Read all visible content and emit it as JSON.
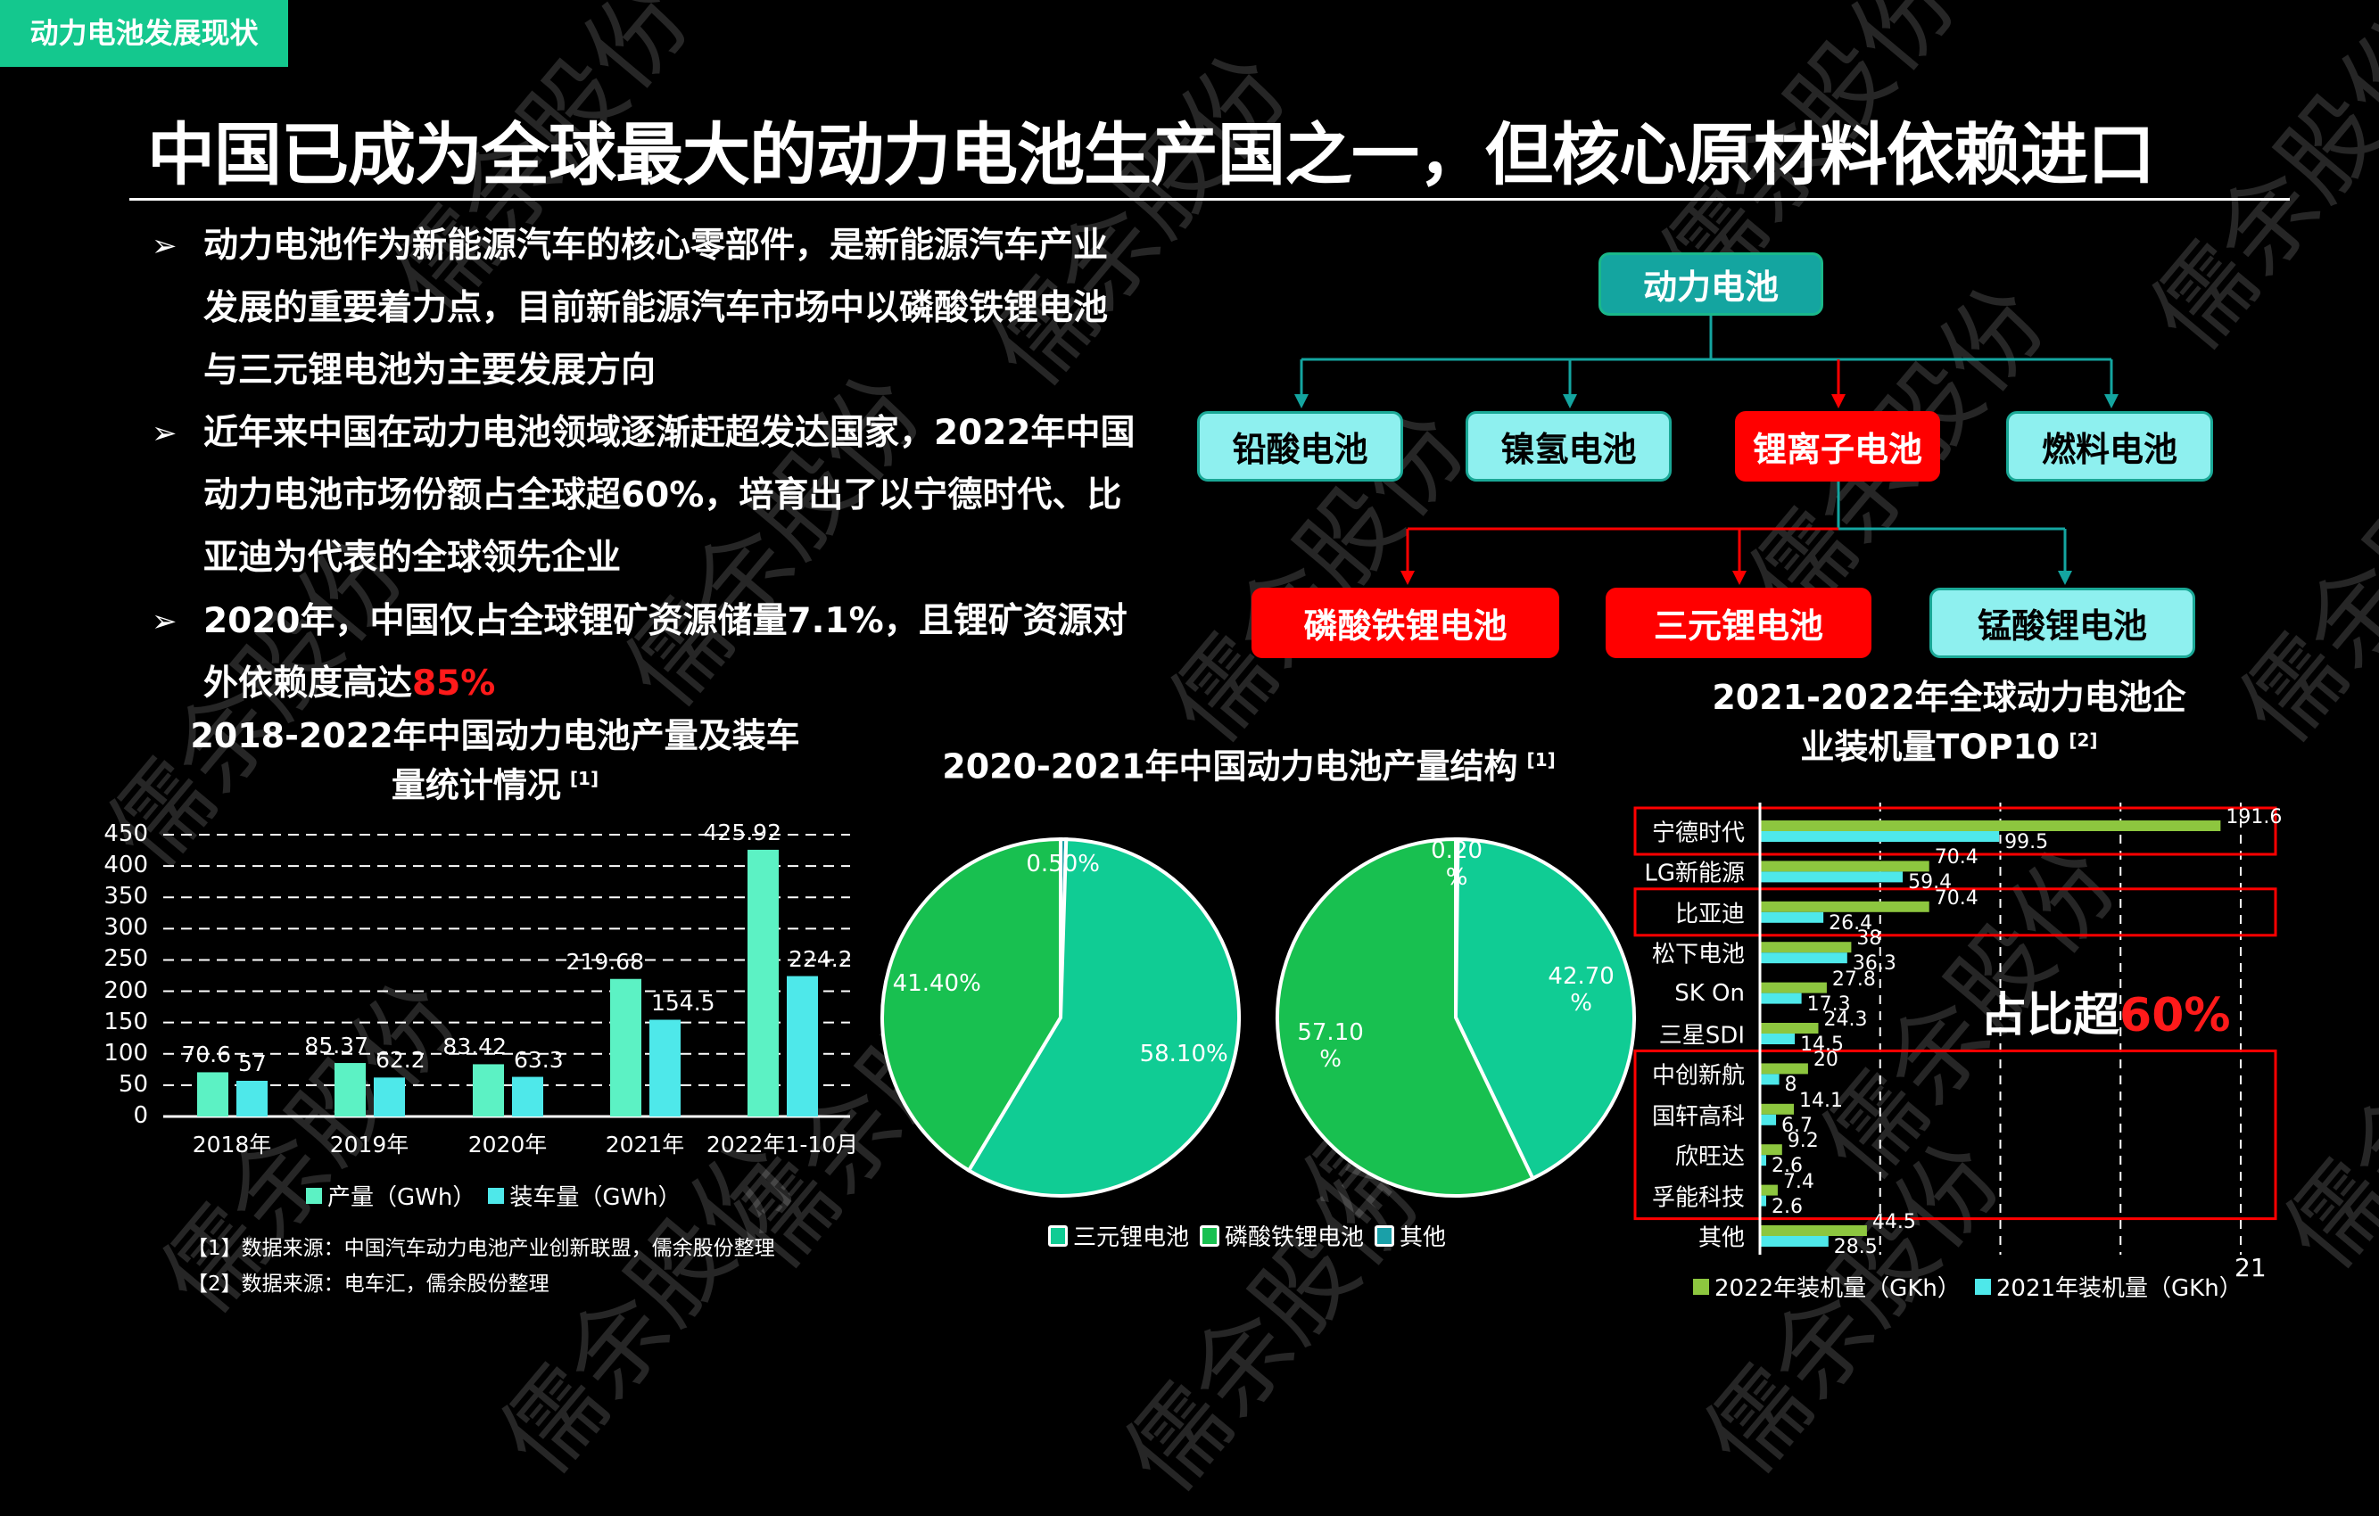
{
  "tag": "动力电池发展现状",
  "title": "中国已成为全球最大的动力电池生产国之一，但核心原材料依赖进口",
  "watermark": "儒余股份",
  "bullets": [
    {
      "lines": [
        "动力电池作为新能源汽车的核心零部件，是新能源汽车产业",
        "发展的重要着力点，目前新能源汽车市场中以磷酸铁锂电池",
        "与三元锂电池为主要发展方向"
      ],
      "highlight": ""
    },
    {
      "lines": [
        "近年来中国在动力电池领域逐渐赶超发达国家，2022年中国",
        "动力电池市场份额占全球超60%，培育出了以宁德时代、比",
        "亚迪为代表的全球领先企业"
      ],
      "highlight": ""
    },
    {
      "lines": [
        "2020年，中国仅占全球锂矿资源储量7.1%，且锂矿资源对",
        "外依赖度高达"
      ],
      "highlight": "85%"
    }
  ],
  "tree": {
    "root": "动力电池",
    "level2": [
      {
        "label": "铅酸电池",
        "highlighted": false
      },
      {
        "label": "镍氢电池",
        "highlighted": false
      },
      {
        "label": "锂离子电池",
        "highlighted": true
      },
      {
        "label": "燃料电池",
        "highlighted": false
      }
    ],
    "level3": [
      {
        "label": "磷酸铁锂电池",
        "highlighted": true
      },
      {
        "label": "三元锂电池",
        "highlighted": true
      },
      {
        "label": "锰酸锂电池",
        "highlighted": false
      }
    ],
    "colors": {
      "teal": "#14a5a0",
      "cyan": "#8ef0ef",
      "red": "#ff0000"
    }
  },
  "footnotes": [
    "【1】数据来源：中国汽车动力电池产业创新联盟，儒余股份整理",
    "【2】数据来源：电车汇，儒余股份整理"
  ],
  "page_number": "21",
  "chart_data": [
    {
      "type": "bar",
      "title_lines": [
        "2018-2022年中国动力电池产量及装车",
        "量统计情况"
      ],
      "title_ref": "[1]",
      "categories": [
        "2018年",
        "2019年",
        "2020年",
        "2021年",
        "2022年1-10月"
      ],
      "series": [
        {
          "name": "产量（GWh）",
          "values": [
            70.6,
            85.37,
            83.42,
            219.68,
            425.92
          ],
          "labels": [
            "70.6",
            "85.37",
            "83.42",
            "219.68",
            "425.92"
          ],
          "color": "#5cf2c4"
        },
        {
          "name": "装车量（GWh）",
          "values": [
            57,
            62.2,
            63.3,
            154.5,
            224.2
          ],
          "labels": [
            "57",
            "62.2",
            "63.3",
            "154.5",
            "224.2"
          ],
          "color": "#4ee8ea"
        }
      ],
      "ylim": [
        0,
        450
      ],
      "yticks": [
        "0",
        "50",
        "100",
        "150",
        "200",
        "250",
        "300",
        "350",
        "400",
        "450"
      ],
      "grid": true,
      "legend": "bottom"
    },
    {
      "type": "pie",
      "title": "2020-2021年中国动力电池产量结构",
      "title_ref": "[1]",
      "categories": [
        "三元锂电池",
        "磷酸铁锂电池",
        "其他"
      ],
      "colors": [
        "#10cc94",
        "#18c050",
        "#1aa0a8"
      ],
      "pies": [
        {
          "values": [
            58.1,
            41.4,
            0.5
          ],
          "labels": [
            "58.10%",
            "41.40%",
            "0.50%"
          ]
        },
        {
          "values": [
            42.7,
            57.1,
            0.2
          ],
          "labels": [
            "42.70%",
            "57.10%",
            "0.20%"
          ]
        }
      ],
      "legend": "bottom"
    },
    {
      "type": "bar",
      "orientation": "horizontal",
      "title_lines": [
        "2021-2022年全球动力电池企",
        "业装机量TOP10"
      ],
      "title_ref": "[2]",
      "categories": [
        "宁德时代",
        "LG新能源",
        "比亚迪",
        "松下电池",
        "SK On",
        "三星SDI",
        "中创新航",
        "国轩高科",
        "欣旺达",
        "孚能科技",
        "其他"
      ],
      "series": [
        {
          "name": "2022年装机量（GKh）",
          "values": [
            191.6,
            70.4,
            70.4,
            38,
            27.8,
            24.3,
            20,
            14.1,
            9.2,
            7.4,
            44.5
          ],
          "labels": [
            "191.6",
            "70.4",
            "70.4",
            "38",
            "27.8",
            "24.3",
            "20",
            "14.1",
            "9.2",
            "7.4",
            "44.5"
          ],
          "color": "#8dc63f"
        },
        {
          "name": "2021年装机量（GKh）",
          "values": [
            99.5,
            59.4,
            26.4,
            36.3,
            17.3,
            14.5,
            8,
            6.7,
            2.6,
            2.6,
            28.5
          ],
          "labels": [
            "99.5",
            "59.4",
            "26.4",
            "36.3",
            "17.3",
            "14.5",
            "8",
            "6.7",
            "2.6",
            "2.6",
            "28.5"
          ],
          "color": "#4ee8ea"
        }
      ],
      "xlim": [
        0,
        200
      ],
      "grid": true,
      "grid_step": 50,
      "legend": "bottom",
      "highlight_groups": [
        [
          0
        ],
        [
          2
        ],
        [
          6,
          7,
          8,
          9
        ]
      ],
      "annotation": {
        "text": "占比超",
        "highlight": "60%"
      }
    }
  ]
}
